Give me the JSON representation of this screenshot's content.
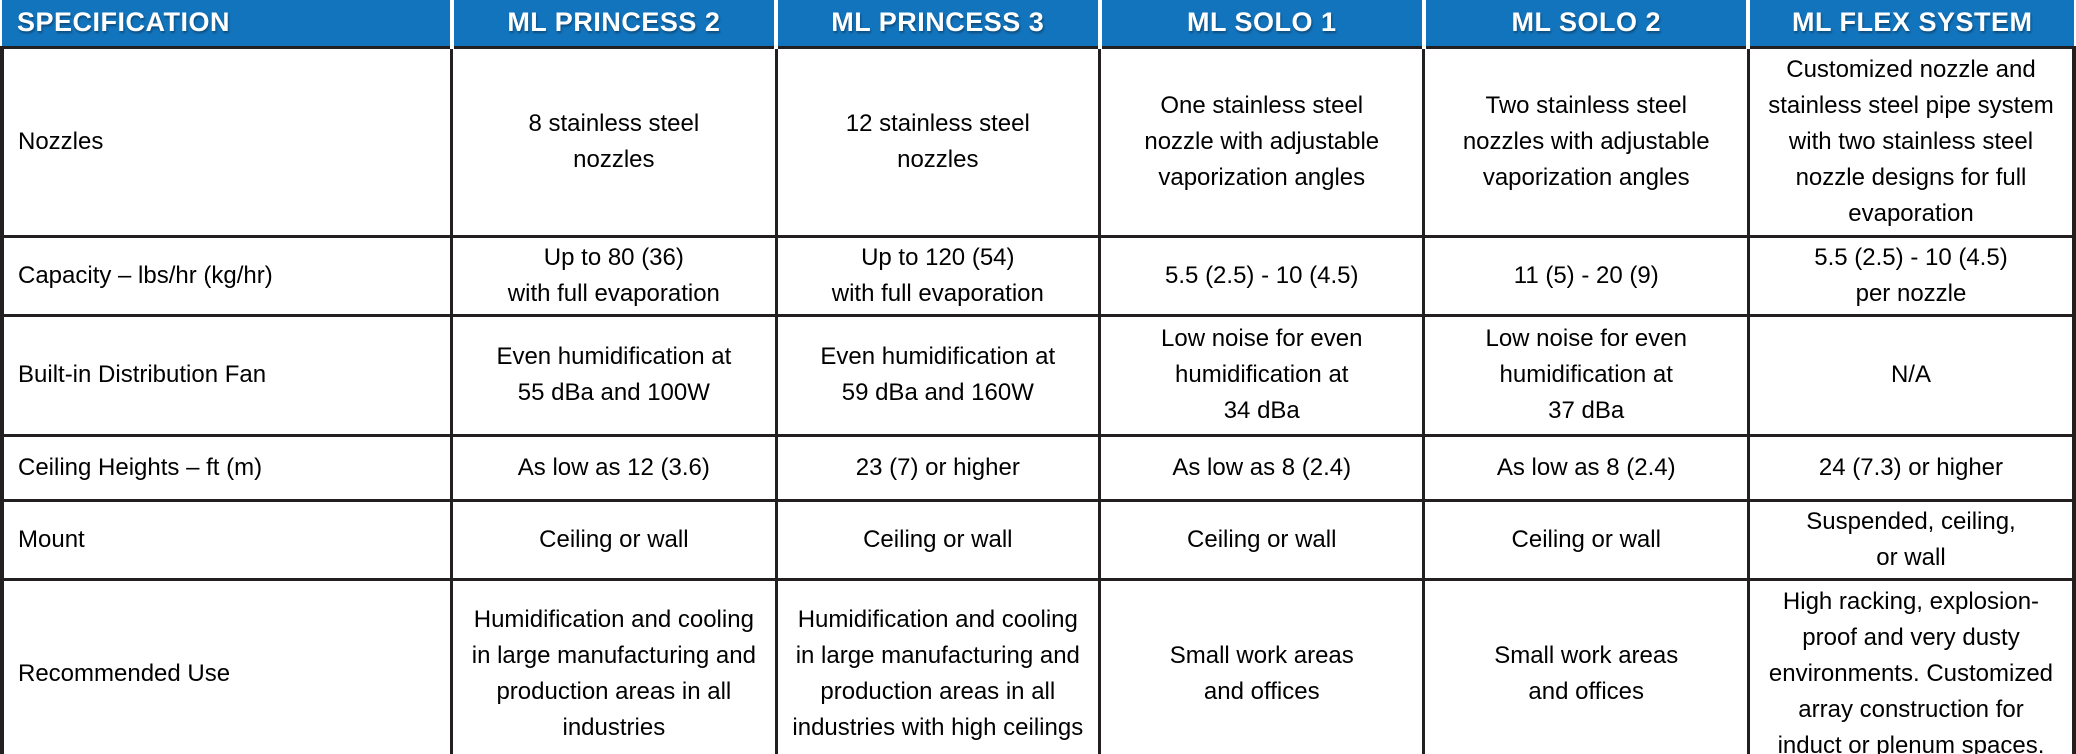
{
  "table": {
    "accent_color": "#1274BD",
    "border_color": "#231f20",
    "columns": [
      "SPECIFICATION",
      "ML PRINCESS 2",
      "ML PRINCESS 3",
      "ML SOLO 1",
      "ML SOLO 2",
      "ML FLEX SYSTEM"
    ],
    "rows": [
      {
        "label": "Nozzles",
        "cells": [
          "8 stainless steel\nnozzles",
          "12 stainless steel\nnozzles",
          "One stainless steel\nnozzle with adjustable\nvaporization angles",
          "Two stainless steel\nnozzles with adjustable\nvaporization angles",
          "Customized nozzle and\nstainless steel pipe system\nwith two stainless steel\nnozzle designs for full\nevaporation"
        ]
      },
      {
        "label": "Capacity – lbs/hr (kg/hr)",
        "cells": [
          "Up to 80 (36)\nwith full evaporation",
          "Up to 120 (54)\nwith full evaporation",
          "5.5  (2.5) - 10 (4.5)",
          "11 (5) - 20 (9)",
          "5.5 (2.5) - 10 (4.5)\nper nozzle"
        ]
      },
      {
        "label": "Built-in Distribution Fan",
        "cells": [
          "Even humidification at\n55 dBa and 100W",
          "Even humidification at\n59 dBa and 160W",
          "Low noise for even\nhumidification at\n34 dBa",
          "Low noise for even\nhumidification at\n37 dBa",
          "N/A"
        ]
      },
      {
        "label": "Ceiling Heights – ft (m)",
        "cells": [
          "As low as 12 (3.6)",
          "23 (7) or higher",
          "As low as 8 (2.4)",
          "As low as 8 (2.4)",
          "24 (7.3) or higher"
        ]
      },
      {
        "label": "Mount",
        "cells": [
          "Ceiling or wall",
          "Ceiling or wall",
          "Ceiling or wall",
          "Ceiling or wall",
          "Suspended, ceiling,\nor wall"
        ]
      },
      {
        "label": "Recommended Use",
        "cells": [
          "Humidification and cooling\nin large manufacturing and\nproduction areas in all\nindustries",
          "Humidification and cooling\nin large manufacturing and\nproduction areas in all\nindustries with high ceilings",
          "Small work areas\nand offices",
          "Small work areas\nand offices",
          "High racking, explosion-\nproof and very dusty\nenvironments. Customized\narray construction for\ninduct or plenum spaces."
        ]
      }
    ]
  }
}
